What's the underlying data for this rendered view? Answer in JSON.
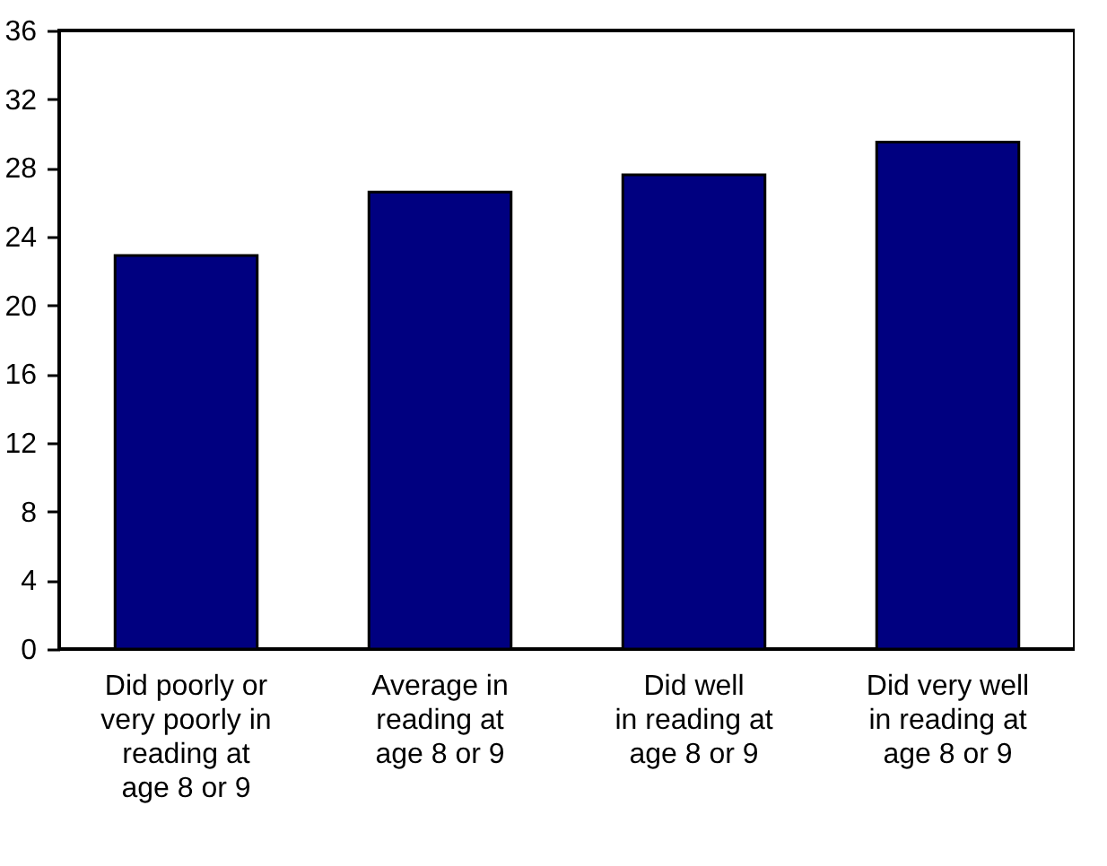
{
  "chart_data": {
    "type": "bar",
    "categories": [
      "Did poorly or\nvery poorly in\nreading at\nage 8 or 9",
      "Average in\nreading at\nage 8 or 9",
      "Did well\nin reading at\nage 8 or 9",
      "Did very well\nin reading at\nage 8 or 9"
    ],
    "values": [
      22.9,
      26.6,
      27.6,
      29.5
    ],
    "color": "#000080",
    "ylim": [
      0,
      36
    ],
    "yticks": [
      0,
      4,
      8,
      12,
      16,
      20,
      24,
      28,
      32,
      36
    ],
    "grid": false
  }
}
